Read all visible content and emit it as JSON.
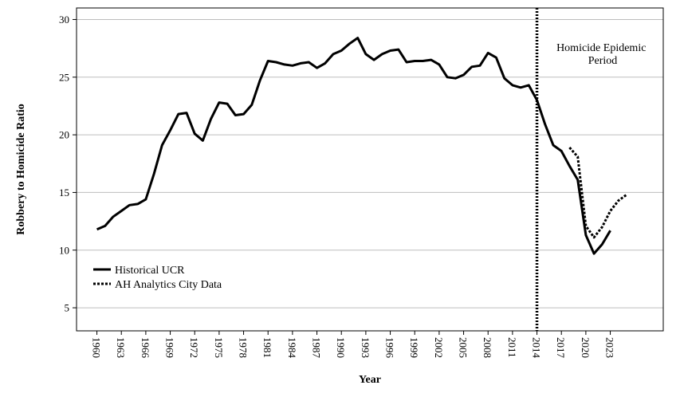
{
  "chart_data": {
    "type": "line",
    "xlabel": "Year",
    "ylabel": "Robbery to Homicide Ratio",
    "ylim": [
      3,
      31
    ],
    "yticks": [
      5,
      10,
      15,
      20,
      25,
      30
    ],
    "xlim": [
      1957.5,
      2029.5
    ],
    "xticks": [
      1960,
      1963,
      1966,
      1969,
      1972,
      1975,
      1978,
      1981,
      1984,
      1987,
      1990,
      1993,
      1996,
      1999,
      2002,
      2005,
      2008,
      2011,
      2014,
      2017,
      2020,
      2023
    ],
    "grid": "horizontal",
    "legend_position": "bottom-left",
    "series": [
      {
        "name": "Historical UCR",
        "style": "solid",
        "color": "#000000",
        "x": [
          1960,
          1961,
          1962,
          1963,
          1964,
          1965,
          1966,
          1967,
          1968,
          1969,
          1970,
          1971,
          1972,
          1973,
          1974,
          1975,
          1976,
          1977,
          1978,
          1979,
          1980,
          1981,
          1982,
          1983,
          1984,
          1985,
          1986,
          1987,
          1988,
          1989,
          1990,
          1991,
          1992,
          1993,
          1994,
          1995,
          1996,
          1997,
          1998,
          1999,
          2000,
          2001,
          2002,
          2003,
          2004,
          2005,
          2006,
          2007,
          2008,
          2009,
          2010,
          2011,
          2012,
          2013,
          2014,
          2015,
          2016,
          2017,
          2018,
          2019,
          2020,
          2021,
          2022,
          2023
        ],
        "values": [
          11.8,
          12.1,
          12.9,
          13.4,
          13.9,
          14.0,
          14.4,
          16.6,
          19.1,
          20.4,
          21.8,
          21.9,
          20.1,
          19.5,
          21.4,
          22.8,
          22.7,
          21.7,
          21.8,
          22.6,
          24.7,
          26.4,
          26.3,
          26.1,
          26.0,
          26.2,
          26.3,
          25.8,
          26.2,
          27.0,
          27.3,
          27.9,
          28.4,
          27.0,
          26.5,
          27.0,
          27.3,
          27.4,
          26.3,
          26.4,
          26.4,
          26.5,
          26.1,
          25.0,
          24.9,
          25.2,
          25.9,
          26.0,
          27.1,
          26.7,
          24.9,
          24.3,
          24.1,
          24.3,
          23.0,
          20.9,
          19.1,
          18.6,
          17.3,
          16.1,
          11.3,
          9.7,
          10.5,
          11.7
        ]
      },
      {
        "name": "AH Analytics City Data",
        "style": "dotted",
        "color": "#000000",
        "x": [
          2018,
          2019,
          2020,
          2021,
          2022,
          2023,
          2024,
          2025
        ],
        "values": [
          18.9,
          18.1,
          12.1,
          11.1,
          12.0,
          13.4,
          14.3,
          14.8
        ]
      }
    ],
    "annotations": [
      {
        "type": "vline",
        "x": 2014,
        "style": "dotted",
        "text_lines": [
          "Homicide Epidemic",
          "Period"
        ]
      }
    ]
  }
}
